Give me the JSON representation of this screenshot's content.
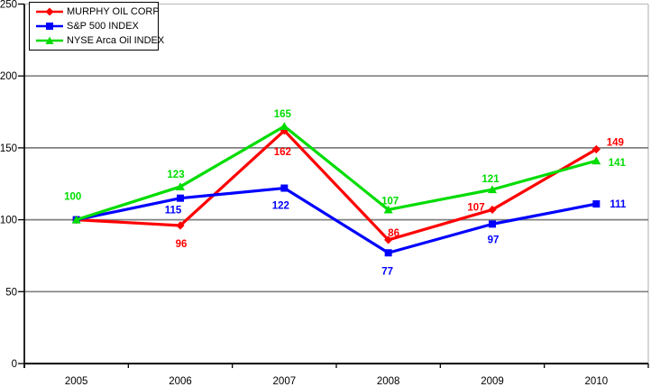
{
  "chart_data": {
    "type": "line",
    "categories": [
      "2005",
      "2006",
      "2007",
      "2008",
      "2009",
      "2010"
    ],
    "series": [
      {
        "name": "MURPHY OIL CORP",
        "color": "#FF0000",
        "marker": "diamond",
        "values": [
          100,
          96,
          162,
          86,
          107,
          149
        ],
        "data_labels": [
          null,
          96,
          162,
          86,
          107,
          149
        ]
      },
      {
        "name": "S&P 500 INDEX",
        "color": "#0000FF",
        "marker": "square",
        "values": [
          100,
          115,
          122,
          77,
          97,
          111
        ],
        "data_labels": [
          null,
          115,
          122,
          77,
          97,
          111
        ]
      },
      {
        "name": "NYSE Arca Oil INDEX",
        "color": "#00DC00",
        "marker": "triangle",
        "values": [
          100,
          123,
          165,
          107,
          121,
          141
        ],
        "data_labels": [
          100,
          123,
          165,
          107,
          121,
          141
        ]
      }
    ],
    "title": "",
    "xlabel": "",
    "ylabel": "",
    "ylim": [
      0,
      250
    ],
    "y_ticks": [
      0,
      50,
      100,
      150,
      200,
      250
    ],
    "grid": "horizontal",
    "legend_position": "top-left",
    "colors": {
      "gridline": "#808080",
      "plot_border": "#C0C0C0",
      "axis": "#000000",
      "text": "#000000",
      "background": "#FFFFFF"
    }
  }
}
